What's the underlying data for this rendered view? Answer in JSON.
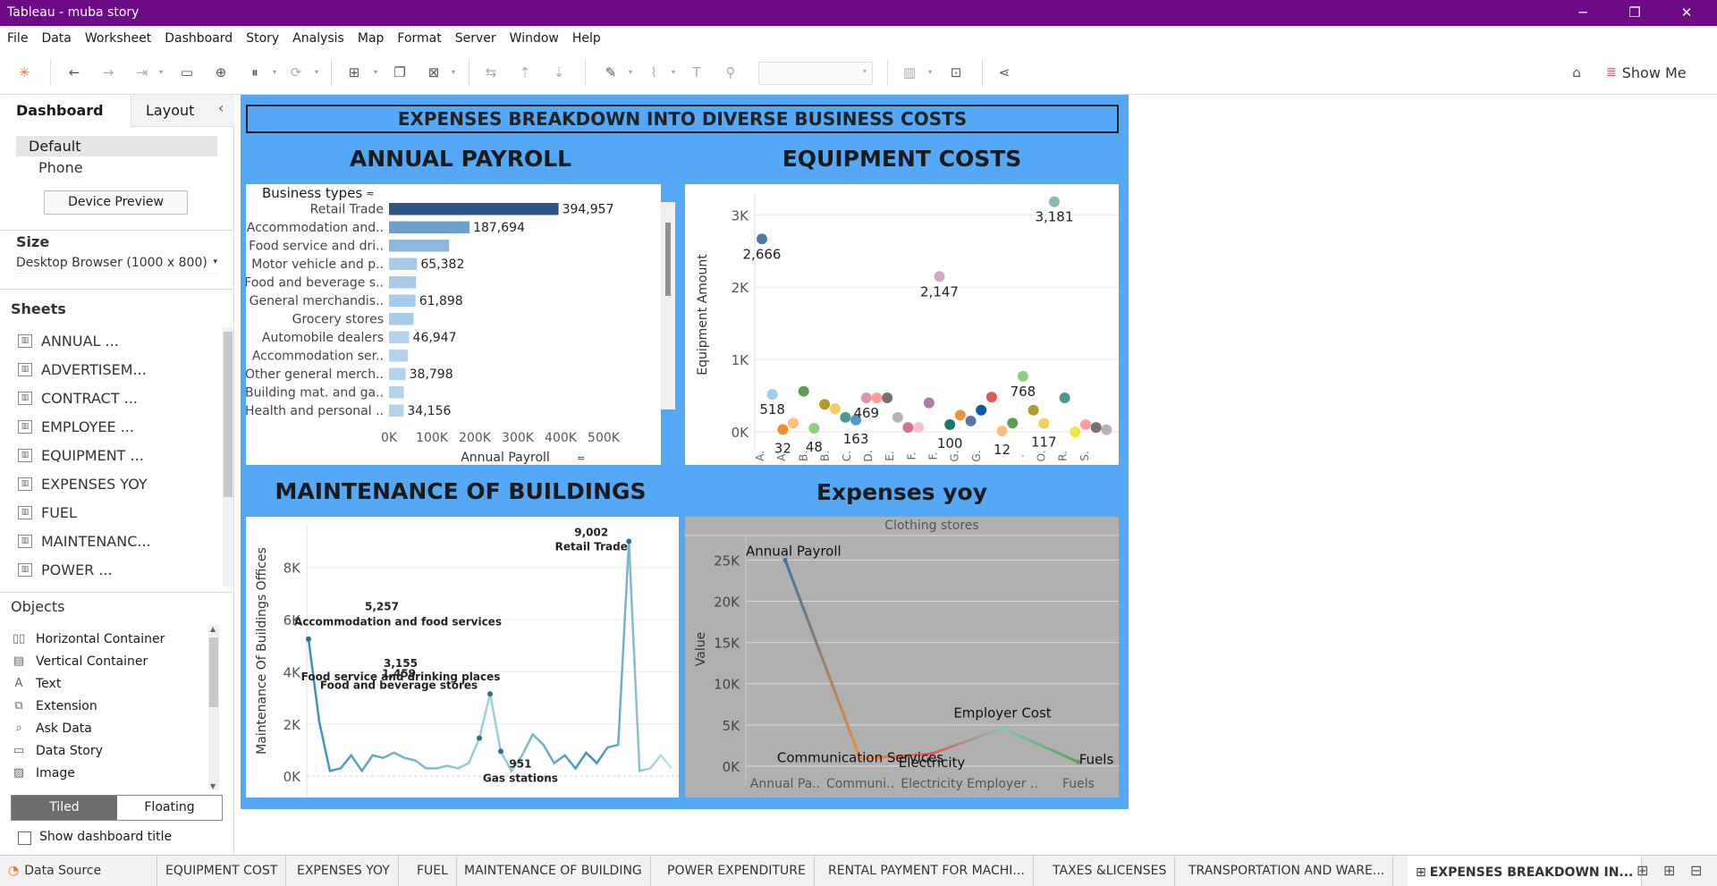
{
  "window": {
    "title": "Tableau - muba story",
    "minimize": "─",
    "restore": "❐",
    "close": "✕"
  },
  "menu": [
    "File",
    "Data",
    "Worksheet",
    "Dashboard",
    "Story",
    "Analysis",
    "Map",
    "Format",
    "Server",
    "Window",
    "Help"
  ],
  "toolbar": {
    "show_me": "Show Me"
  },
  "left": {
    "tabs": {
      "dashboard": "Dashboard",
      "layout": "Layout"
    },
    "collapse": "‹",
    "device": {
      "default": "Default",
      "phone": "Phone",
      "preview_button": "Device Preview"
    },
    "size": {
      "heading": "Size",
      "value": "Desktop Browser (1000 x 800)"
    },
    "sheets_heading": "Sheets",
    "sheets": [
      "ANNUAL ...",
      "ADVERTISEM...",
      "CONTRACT ...",
      "EMPLOYEE ...",
      "EQUIPMENT ...",
      "EXPENSES YOY",
      "FUEL",
      "MAINTENANC...",
      "POWER ..."
    ],
    "objects_heading": "Objects",
    "objects": [
      {
        "icon": "horizontal-container-icon",
        "glyph": "▯▯",
        "label": "Horizontal Container"
      },
      {
        "icon": "vertical-container-icon",
        "glyph": "▤",
        "label": "Vertical Container"
      },
      {
        "icon": "text-icon",
        "glyph": "A",
        "label": "Text"
      },
      {
        "icon": "extension-icon",
        "glyph": "⧉",
        "label": "Extension"
      },
      {
        "icon": "ask-data-icon",
        "glyph": "⌕",
        "label": "Ask Data"
      },
      {
        "icon": "data-story-icon",
        "glyph": "▭",
        "label": "Data Story"
      },
      {
        "icon": "image-icon",
        "glyph": "▨",
        "label": "Image"
      }
    ],
    "tiled": "Tiled",
    "floating": "Floating",
    "show_title": "Show dashboard title"
  },
  "dashboard": {
    "title": "EXPENSES BREAKDOWN INTO DIVERSE BUSINESS COSTS",
    "payroll_title": "ANNUAL PAYROLL",
    "equipment_title": "EQUIPMENT COSTS",
    "maintenance_title": "MAINTENANCE  OF BUILDINGS",
    "yoy_title": "Expenses yoy",
    "accent": "#55a8f6"
  },
  "sheet_tabs": [
    "Data Source",
    "EQUIPMENT COST",
    "EXPENSES YOY",
    "FUEL",
    "MAINTENANCE OF BUILDING",
    "POWER EXPENDITURE",
    "RENTAL PAYMENT FOR MACHI...",
    "TAXES &LICENSES",
    "TRANSPORTATION AND WARE...",
    "EXPENSES BREAKDOWN IN..."
  ],
  "chart_data": [
    {
      "type": "bar",
      "orientation": "horizontal",
      "header": "Business types",
      "categories": [
        "Retail Trade",
        "Accommodation and..",
        "Food service and dri..",
        "Motor vehicle and p..",
        "Food and beverage s..",
        "General merchandis..",
        "Grocery stores",
        "Automobile dealers",
        "Accommodation ser..",
        "Other general merch..",
        "Building mat. and ga..",
        "Health and personal .."
      ],
      "values": [
        394957,
        187694,
        140000,
        65382,
        63000,
        61898,
        57000,
        46947,
        44000,
        38798,
        34500,
        34156
      ],
      "labels": [
        "394,957",
        "187,694",
        "",
        "65,382",
        "",
        "61,898",
        "",
        "46,947",
        "",
        "38,798",
        "",
        "34,156"
      ],
      "colors": [
        "#2a5783",
        "#6f9fce",
        "#8db7dc",
        "#a7cbe9",
        "#a7cbe9",
        "#a7cbe9",
        "#a7cbe9",
        "#b2d3ee",
        "#b2d3ee",
        "#b2d3ee",
        "#b2d3ee",
        "#b2d3ee"
      ],
      "xlim": [
        0,
        500000
      ],
      "xticks": [
        "0K",
        "100K",
        "200K",
        "300K",
        "400K",
        "500K"
      ],
      "xlabel": "Annual Payroll"
    },
    {
      "type": "scatter",
      "ylabel": "Equipment Amount",
      "ylim": [
        0,
        3300
      ],
      "yticks": [
        "0K",
        "1K",
        "2K",
        "3K"
      ],
      "xticks": [
        "A.",
        "A.",
        "B.",
        "B.",
        "C.",
        "D.",
        "E.",
        "F.",
        "F.",
        "G.",
        "G.",
        "",
        ".",
        "O.",
        "R.",
        "S."
      ],
      "points": [
        {
          "y": 2666,
          "c": "#4e79a7",
          "label": "2,666"
        },
        {
          "y": 518,
          "c": "#a0cbe8",
          "label": "518"
        },
        {
          "y": 32,
          "c": "#f28e2b",
          "label": "32"
        },
        {
          "y": 120,
          "c": "#ffbe7d",
          "label": ""
        },
        {
          "y": 560,
          "c": "#59a14f",
          "label": ""
        },
        {
          "y": 48,
          "c": "#8cd17d",
          "label": "48"
        },
        {
          "y": 380,
          "c": "#b6992d",
          "label": ""
        },
        {
          "y": 320,
          "c": "#f1ce63",
          "label": ""
        },
        {
          "y": 200,
          "c": "#499894",
          "label": ""
        },
        {
          "y": 163,
          "c": "#4e9bd1",
          "label": "163"
        },
        {
          "y": 469,
          "c": "#e491b4",
          "label": "469"
        },
        {
          "y": 469,
          "c": "#ff9d9a",
          "label": ""
        },
        {
          "y": 469,
          "c": "#79706e",
          "label": ""
        },
        {
          "y": 200,
          "c": "#bab0ac",
          "label": ""
        },
        {
          "y": 60,
          "c": "#d37295",
          "label": ""
        },
        {
          "y": 60,
          "c": "#fabfd2",
          "label": ""
        },
        {
          "y": 400,
          "c": "#b07aa1",
          "label": ""
        },
        {
          "y": 2147,
          "c": "#d4a6c8",
          "label": "2,147"
        },
        {
          "y": 100,
          "c": "#157a6e",
          "label": "100"
        },
        {
          "y": 230,
          "c": "#e49444",
          "label": ""
        },
        {
          "y": 150,
          "c": "#5778a4",
          "label": ""
        },
        {
          "y": 300,
          "c": "#0e58a8",
          "label": ""
        },
        {
          "y": 480,
          "c": "#e15759",
          "label": ""
        },
        {
          "y": 12,
          "c": "#ffbe7d",
          "label": "12"
        },
        {
          "y": 120,
          "c": "#59a14f",
          "label": ""
        },
        {
          "y": 768,
          "c": "#8cd17d",
          "label": "768"
        },
        {
          "y": 300,
          "c": "#b6992d",
          "label": ""
        },
        {
          "y": 117,
          "c": "#f1ce63",
          "label": "117"
        },
        {
          "y": 3181,
          "c": "#86bcb6",
          "label": "3,181"
        },
        {
          "y": 470,
          "c": "#499894",
          "label": ""
        },
        {
          "y": 0,
          "c": "#f0e442",
          "label": ""
        },
        {
          "y": 100,
          "c": "#ff9d9a",
          "label": ""
        },
        {
          "y": 60,
          "c": "#79706e",
          "label": ""
        },
        {
          "y": 30,
          "c": "#bab0ac",
          "label": ""
        }
      ]
    },
    {
      "type": "line",
      "ylabel": "Maintenance Of Buildings Offices",
      "ylim": [
        -200,
        9600
      ],
      "yticks": [
        "0K",
        "2K",
        "4K",
        "6K",
        "8K"
      ],
      "values": [
        5257,
        2100,
        200,
        300,
        800,
        200,
        800,
        700,
        900,
        700,
        600,
        300,
        300,
        400,
        300,
        500,
        1459,
        3155,
        951,
        200,
        800,
        1600,
        1200,
        500,
        800,
        300,
        900,
        500,
        1100,
        1200,
        9002,
        200,
        300,
        800,
        300
      ],
      "annotations": [
        {
          "i": 0,
          "value": "5,257",
          "text": "Accommodation and food services"
        },
        {
          "i": 16,
          "value": "1,459",
          "text": "Food and beverage stores"
        },
        {
          "i": 17,
          "value": "3,155",
          "text": "Food service and drinking places"
        },
        {
          "i": 18,
          "value": "951",
          "text": "Gas stations"
        },
        {
          "i": 30,
          "value": "9,002",
          "text": "Retail Trade"
        }
      ],
      "line_color_start": "#3a8fb8",
      "line_color_end": "#c6e6e2"
    },
    {
      "type": "line",
      "header": "Clothing stores",
      "ylabel": "Value",
      "ylim": [
        -1200,
        27000
      ],
      "yticks": [
        "0K",
        "5K",
        "10K",
        "15K",
        "20K",
        "25K"
      ],
      "categories": [
        "Annual Pa..",
        "Communi..",
        "Electricity",
        "Employer ..",
        "Fuels"
      ],
      "values": [
        25000,
        900,
        1500,
        4600,
        500
      ],
      "labels": [
        "Annual Payroll",
        "Communication Services",
        "Electricity",
        "Employer Cost",
        "Fuels"
      ],
      "segment_colors": [
        [
          "#3f6fa8",
          "#f28e2b"
        ],
        [
          "#f28e2b",
          "#e15759"
        ],
        [
          "#e15759",
          "#80c6b2"
        ],
        [
          "#80c6b2",
          "#59a14f"
        ]
      ],
      "background": "#b0b0b0"
    }
  ]
}
